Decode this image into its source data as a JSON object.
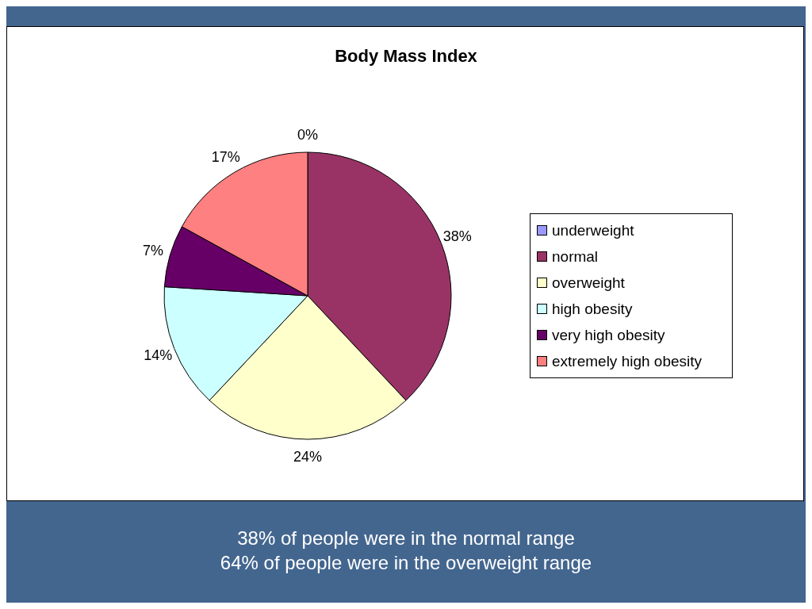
{
  "chart_data": {
    "type": "pie",
    "title": "Body Mass Index",
    "categories": [
      "underweight",
      "normal",
      "overweight",
      "high obesity",
      "very high obesity",
      "extremely high obesity"
    ],
    "values": [
      0,
      38,
      24,
      14,
      7,
      17
    ],
    "value_labels": [
      "0%",
      "38%",
      "24%",
      "14%",
      "7%",
      "17%"
    ],
    "colors": [
      "#9999ff",
      "#993366",
      "#ffffcc",
      "#ccffff",
      "#660066",
      "#ff8080"
    ],
    "legend": "right",
    "annotations": [
      "38% of people were in the normal range",
      "64% of people were in the overweight range"
    ]
  }
}
